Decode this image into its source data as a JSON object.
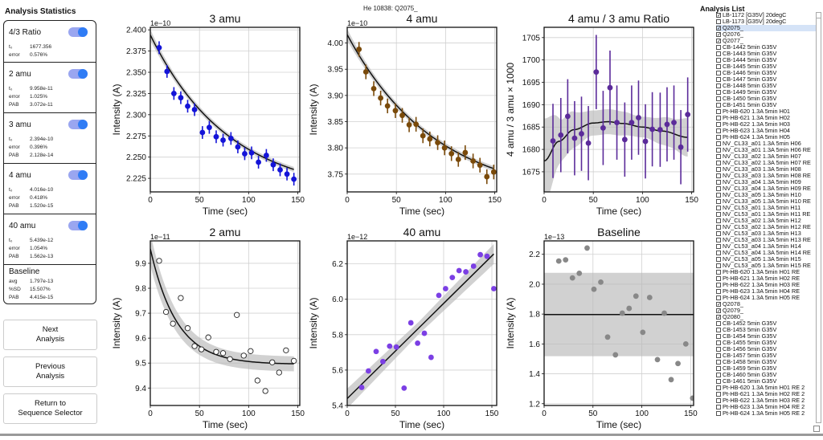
{
  "window_title": "He 10838: Q2075_",
  "stats": {
    "title": "Analysis Statistics",
    "cards": [
      {
        "name": "4/3 Ratio",
        "enabled": true,
        "rows": [
          {
            "k": "t₀",
            "v": "1677.356"
          },
          {
            "k": "error",
            "v": "0.576%"
          }
        ]
      },
      {
        "name": "2 amu",
        "enabled": true,
        "rows": [
          {
            "k": "t₀",
            "v": "9.958e-11"
          },
          {
            "k": "error",
            "v": "1.025%"
          },
          {
            "k": "PAB",
            "v": "3.072e-11"
          }
        ]
      },
      {
        "name": "3 amu",
        "enabled": true,
        "rows": [
          {
            "k": "t₀",
            "v": "2.394e-10"
          },
          {
            "k": "error",
            "v": "0.396%"
          },
          {
            "k": "PAB",
            "v": "2.128e-14"
          }
        ]
      },
      {
        "name": "4 amu",
        "enabled": true,
        "rows": [
          {
            "k": "t₀",
            "v": "4.016e-10"
          },
          {
            "k": "error",
            "v": "0.418%"
          },
          {
            "k": "PAB",
            "v": "1.520e-15"
          }
        ]
      },
      {
        "name": "40 amu",
        "enabled": true,
        "rows": [
          {
            "k": "t₀",
            "v": "5.439e-12"
          },
          {
            "k": "error",
            "v": "1.054%"
          },
          {
            "k": "PAB",
            "v": "1.562e-13"
          }
        ]
      },
      {
        "name": "Baseline",
        "enabled": null,
        "rows": [
          {
            "k": "avg",
            "v": "1.797e-13"
          },
          {
            "k": "%SD",
            "v": "15.507%"
          },
          {
            "k": "PAB",
            "v": "4.415e-15"
          }
        ]
      }
    ]
  },
  "buttons": {
    "next": "Next\nAnalysis",
    "previous": "Previous\nAnalysis",
    "return": "Return to\nSequence Selector"
  },
  "analysis_list": {
    "title": "Analysis List",
    "items": [
      {
        "label": "LB-1172 [G35V] 20degC",
        "checked": true
      },
      {
        "label": "LB-1173 [G35V] 20degC",
        "checked": false
      },
      {
        "label": "Q2075_",
        "checked": true,
        "selected": true
      },
      {
        "label": "Q2076_",
        "checked": true
      },
      {
        "label": "Q2077_",
        "checked": true
      },
      {
        "label": "CB-1442 5min G35V",
        "checked": false
      },
      {
        "label": "CB-1443 5min G35V",
        "checked": false
      },
      {
        "label": "CB-1444 5min G35V",
        "checked": false
      },
      {
        "label": "CB-1445 5min G35V",
        "checked": false
      },
      {
        "label": "CB-1446 5min G35V",
        "checked": false
      },
      {
        "label": "CB-1447 5min G35V",
        "checked": false
      },
      {
        "label": "CB-1448 5min G35V",
        "checked": false
      },
      {
        "label": "CB-1449 5min G35V",
        "checked": false
      },
      {
        "label": "CB-1450 5min G35V",
        "checked": false
      },
      {
        "label": "CB-1451 5min G35V",
        "checked": false
      },
      {
        "label": "Pt-HB-620 1.3A 5min H01",
        "checked": false
      },
      {
        "label": "Pt-HB-621 1.3A 5min H02",
        "checked": false
      },
      {
        "label": "Pt-HB-622 1.3A 5min H03",
        "checked": false
      },
      {
        "label": "Pt-HB-623 1.3A 5min H04",
        "checked": false
      },
      {
        "label": "Pt-HB-624 1.3A 5min H05",
        "checked": false
      },
      {
        "label": "NV_CL33_a01 1.3A 5min H06",
        "checked": false
      },
      {
        "label": "NV_CL33_a01 1.3A 5min H06 RE",
        "checked": false
      },
      {
        "label": "NV_CL33_a02 1.3A 5min H07",
        "checked": false
      },
      {
        "label": "NV_CL33_a02 1.3A 5min H07 RE",
        "checked": false
      },
      {
        "label": "NV_CL33_a03 1.3A 5min H08",
        "checked": false
      },
      {
        "label": "NV_CL33_a03 1.3A 5min H08 RE",
        "checked": false
      },
      {
        "label": "NV_CL33_a04 1.3A 5min H09",
        "checked": false
      },
      {
        "label": "NV_CL33_a04 1.3A 5min H09 RE",
        "checked": false
      },
      {
        "label": "NV_CL33_a05 1.3A 5min H10",
        "checked": false
      },
      {
        "label": "NV_CL33_a05 1.3A 5min H10 RE",
        "checked": false
      },
      {
        "label": "NV_CL53_a01 1.3A 5min H11",
        "checked": false
      },
      {
        "label": "NV_CL53_a01 1.3A 5min H11 RE",
        "checked": false
      },
      {
        "label": "NV_CL53_a02 1.3A 5min H12",
        "checked": false
      },
      {
        "label": "NV_CL53_a02 1.3A 5min H12 RE",
        "checked": false
      },
      {
        "label": "NV_CL53_a03 1.3A 5min H13",
        "checked": false
      },
      {
        "label": "NV_CL53_a03 1.3A 5min H13 RE",
        "checked": false
      },
      {
        "label": "NV_CL53_a04 1.3A 5min H14",
        "checked": false
      },
      {
        "label": "NV_CL53_a04 1.3A 5min H14 RE",
        "checked": false
      },
      {
        "label": "NV_CL53_a05 1.3A 5min H15",
        "checked": false
      },
      {
        "label": "NV_CL53_a05 1.3A 5min H15 RE",
        "checked": false
      },
      {
        "label": "Pt-HB-620 1.3A 5min H01 RE",
        "checked": false
      },
      {
        "label": "Pt-HB-621 1.3A 5min H02 RE",
        "checked": false
      },
      {
        "label": "Pt-HB-622 1.3A 5min H03 RE",
        "checked": false
      },
      {
        "label": "Pt-HB-623 1.3A 5min H04 RE",
        "checked": false
      },
      {
        "label": "Pt-HB-624 1.3A 5min H05 RE",
        "checked": false
      },
      {
        "label": "Q2078_",
        "checked": true
      },
      {
        "label": "Q2079_",
        "checked": true
      },
      {
        "label": "Q2080_",
        "checked": true
      },
      {
        "label": "CB-1452 5min G35V",
        "checked": false
      },
      {
        "label": "CB-1453 5min G35V",
        "checked": false
      },
      {
        "label": "CB-1454 5min G35V",
        "checked": false
      },
      {
        "label": "CB-1455 5min G35V",
        "checked": false
      },
      {
        "label": "CB-1456 5min G35V",
        "checked": false
      },
      {
        "label": "CB-1457 5min G35V",
        "checked": false
      },
      {
        "label": "CB-1458 5min G35V",
        "checked": false
      },
      {
        "label": "CB-1459 5min G35V",
        "checked": false
      },
      {
        "label": "CB-1460 5min G35V",
        "checked": false
      },
      {
        "label": "CB-1461 5min G35V",
        "checked": false
      },
      {
        "label": "Pt-HB-620 1.3A 5min H01 RE 2",
        "checked": false
      },
      {
        "label": "Pt-HB-621 1.3A 5min H02 RE 2",
        "checked": false
      },
      {
        "label": "Pt-HB-622 1.3A 5min H03 RE 2",
        "checked": false
      },
      {
        "label": "Pt-HB-623 1.3A 5min H04 RE 2",
        "checked": false
      },
      {
        "label": "Pt-HB-624 1.3A 5min H05 RE 2",
        "checked": false
      }
    ]
  },
  "chart_data": [
    {
      "id": "amu3",
      "type": "scatter",
      "title": "3 amu",
      "xlabel": "Time (sec)",
      "ylabel": "Intensity (A)",
      "multiplier": "1e−10",
      "xlim": [
        0,
        152
      ],
      "ylim": [
        2.209,
        2.403
      ],
      "xticks": [
        "0",
        "50",
        "100",
        "150"
      ],
      "yticks": [
        "2.225",
        "2.250",
        "2.275",
        "2.300",
        "2.325",
        "2.350",
        "2.375",
        "2.400"
      ],
      "color": "#1414d8",
      "marker": "filled",
      "grid": true,
      "x": [
        9,
        17,
        24,
        31,
        38,
        45,
        53,
        60,
        67,
        74,
        82,
        89,
        96,
        103,
        110,
        118,
        125,
        132,
        139,
        146
      ],
      "y": [
        2.379,
        2.351,
        2.325,
        2.32,
        2.31,
        2.306,
        2.279,
        2.285,
        2.274,
        2.27,
        2.272,
        2.262,
        2.254,
        2.255,
        2.244,
        2.252,
        2.241,
        2.235,
        2.23,
        2.224
      ],
      "err": 0.0075,
      "fit": {
        "kind": "exp",
        "y0": 2.394,
        "yinf": 2.205,
        "tau": 80,
        "band": 0.003
      }
    },
    {
      "id": "amu4",
      "type": "scatter",
      "title": "4 amu",
      "xlabel": "Time (sec)",
      "ylabel": "Intensity (A)",
      "multiplier": "1e−10",
      "xlim": [
        0,
        152
      ],
      "ylim": [
        3.716,
        4.03
      ],
      "xticks": [
        "0",
        "50",
        "100",
        "150"
      ],
      "yticks": [
        "3.75",
        "3.80",
        "3.85",
        "3.90",
        "3.95",
        "4.00"
      ],
      "color": "#7a4a0a",
      "marker": "filled",
      "grid": true,
      "x": [
        12,
        19,
        27,
        34,
        41,
        49,
        56,
        63,
        70,
        77,
        84,
        92,
        99,
        106,
        113,
        120,
        128,
        135,
        142,
        149
      ],
      "y": [
        3.988,
        3.945,
        3.913,
        3.895,
        3.88,
        3.871,
        3.862,
        3.844,
        3.845,
        3.823,
        3.817,
        3.81,
        3.8,
        3.789,
        3.778,
        3.791,
        3.775,
        3.767,
        3.745,
        3.754
      ],
      "err": 0.014,
      "fit": {
        "kind": "exp",
        "y0": 4.016,
        "yinf": 3.7,
        "tau": 90,
        "band": 0.005
      }
    },
    {
      "id": "ratio",
      "type": "scatter",
      "title": "4 amu / 3 amu Ratio",
      "xlabel": "Time (sec)",
      "ylabel": "4 amu / 3 amu × 1000",
      "multiplier": "",
      "xlim": [
        0,
        152
      ],
      "ylim": [
        1670.5,
        1707.3
      ],
      "xticks": [
        "0",
        "50",
        "100",
        "150"
      ],
      "yticks": [
        "1675",
        "1680",
        "1685",
        "1690",
        "1695",
        "1700",
        "1705"
      ],
      "color": "#5b2b9a",
      "marker": "filled",
      "grid": true,
      "x": [
        9,
        17,
        24,
        31,
        38,
        45,
        53,
        60,
        67,
        74,
        82,
        89,
        96,
        103,
        110,
        118,
        125,
        132,
        139,
        146
      ],
      "y": [
        1681.9,
        1683.2,
        1687.4,
        1682.5,
        1683.5,
        1681.4,
        1697.3,
        1684.8,
        1693.8,
        1686.0,
        1682.2,
        1686.0,
        1687.1,
        1681.8,
        1684.5,
        1684.4,
        1685.6,
        1686.0,
        1680.5,
        1687.8
      ],
      "err": 8.3,
      "fit": {
        "kind": "poly",
        "points": [
          [
            0,
            1677.4
          ],
          [
            15,
            1681.8
          ],
          [
            30,
            1684.4
          ],
          [
            50,
            1685.9
          ],
          [
            65,
            1686.2
          ],
          [
            80,
            1685.8
          ],
          [
            100,
            1685.0
          ],
          [
            120,
            1684.1
          ],
          [
            146,
            1682.7
          ]
        ],
        "band_points": [
          [
            0,
            9.5
          ],
          [
            20,
            4.5
          ],
          [
            50,
            2.8
          ],
          [
            70,
            2.8
          ],
          [
            100,
            2.3
          ],
          [
            130,
            3.3
          ],
          [
            146,
            4.3
          ]
        ]
      }
    },
    {
      "id": "amu2",
      "type": "scatter",
      "title": "2 amu",
      "xlabel": "Time (sec)",
      "ylabel": "Intensity (A)",
      "multiplier": "1e−11",
      "xlim": [
        0,
        152
      ],
      "ylim": [
        9.33,
        9.99
      ],
      "xticks": [
        "0",
        "50",
        "100",
        "150"
      ],
      "yticks": [
        "9.4",
        "9.5",
        "9.6",
        "9.7",
        "9.8",
        "9.9"
      ],
      "color": "#ffffff",
      "marker": "hollow",
      "grid": true,
      "x": [
        9,
        16,
        23,
        31,
        38,
        45,
        52,
        59,
        67,
        74,
        81,
        88,
        95,
        102,
        109,
        117,
        124,
        131,
        138,
        146
      ],
      "y": [
        9.91,
        9.705,
        9.658,
        9.761,
        9.64,
        9.568,
        9.555,
        9.603,
        9.545,
        9.54,
        9.516,
        9.693,
        9.53,
        9.548,
        9.43,
        9.388,
        9.503,
        9.462,
        9.551,
        9.509
      ],
      "err": 0,
      "fit": {
        "kind": "exp",
        "y0": 9.958,
        "yinf": 9.495,
        "tau": 27,
        "band": 0.03
      }
    },
    {
      "id": "amu40",
      "type": "scatter",
      "title": "40 amu",
      "xlabel": "Time (sec)",
      "ylabel": "Intensity (A)",
      "multiplier": "1e−12",
      "xlim": [
        0,
        155
      ],
      "ylim": [
        5.4,
        6.33
      ],
      "xticks": [
        "0",
        "50",
        "100",
        "150"
      ],
      "yticks": [
        "5.4",
        "5.6",
        "5.8",
        "6.0",
        "6.2"
      ],
      "color": "#7b3fe4",
      "marker": "filled",
      "grid": true,
      "x": [
        15,
        22,
        30,
        37,
        44,
        51,
        59,
        66,
        73,
        80,
        87,
        95,
        102,
        109,
        116,
        123,
        131,
        138,
        145,
        152
      ],
      "y": [
        5.502,
        5.595,
        5.705,
        5.648,
        5.735,
        5.73,
        5.498,
        5.867,
        5.752,
        5.808,
        5.672,
        6.022,
        6.06,
        6.123,
        6.162,
        6.155,
        6.187,
        6.252,
        6.243,
        6.06
      ],
      "err": 0,
      "fit": {
        "kind": "linear",
        "y0": 5.439,
        "slope": 0.005375,
        "band": 0.035
      }
    },
    {
      "id": "baseline",
      "type": "scatter",
      "title": "Baseline",
      "xlabel": "Time (sec)",
      "ylabel": "Intensity (A)",
      "multiplier": "1e−13",
      "xlim": [
        0,
        153
      ],
      "ylim": [
        1.188,
        2.29
      ],
      "xticks": [
        "0",
        "50",
        "100",
        "150"
      ],
      "yticks": [
        "1.2",
        "1.4",
        "1.6",
        "1.8",
        "2.0",
        "2.2"
      ],
      "color": "#888888",
      "marker": "filled",
      "grid": true,
      "x": [
        15,
        22,
        29,
        36,
        44,
        51,
        58,
        65,
        73,
        80,
        87,
        94,
        101,
        108,
        116,
        123,
        130,
        137,
        145,
        152
      ],
      "y": [
        2.155,
        2.163,
        2.042,
        2.073,
        2.242,
        1.966,
        2.014,
        1.646,
        1.527,
        1.806,
        1.838,
        1.92,
        1.678,
        1.911,
        1.495,
        1.806,
        1.361,
        1.469,
        1.6,
        1.237
      ],
      "err": 0,
      "fit": {
        "kind": "const",
        "y0": 1.797,
        "band": 0.279
      }
    }
  ]
}
